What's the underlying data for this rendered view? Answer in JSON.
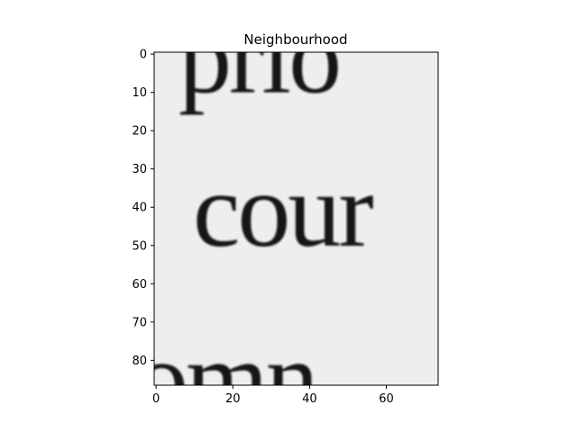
{
  "chart_data": {
    "type": "image",
    "title": "Neighbourhood",
    "xlabel": "",
    "ylabel": "",
    "xlim": [
      -0.5,
      73.5
    ],
    "ylim": [
      86.5,
      -0.5
    ],
    "y_inverted": true,
    "colormap": "gray",
    "grid": false,
    "x_ticks": [
      0,
      20,
      40,
      60
    ],
    "x_tick_labels": [
      "0",
      "20",
      "40",
      "60"
    ],
    "y_ticks": [
      0,
      10,
      20,
      30,
      40,
      50,
      60,
      70,
      80
    ],
    "y_tick_labels": [
      "0",
      "10",
      "20",
      "30",
      "40",
      "50",
      "60",
      "70",
      "80"
    ],
    "image_text_lines": [
      {
        "text": "prio",
        "baseline_y": 10
      },
      {
        "text": "cour",
        "baseline_y": 50
      },
      {
        "text": "omn",
        "baseline_y": 94
      }
    ],
    "background_color": "#eeeeee",
    "ink_color": "#141414"
  }
}
